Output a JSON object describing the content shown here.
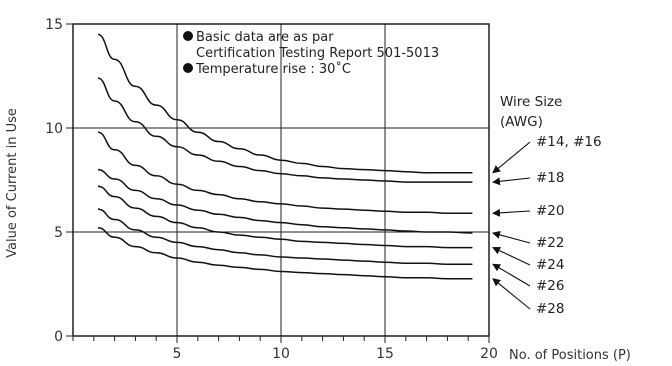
{
  "chart_data": {
    "type": "line",
    "ylabel": "Value of Current in Use",
    "xlabel": "No. of Positions (P)",
    "xlim": [
      0,
      20
    ],
    "ylim": [
      0,
      15
    ],
    "xticks": [
      5,
      10,
      15,
      20
    ],
    "yticks": [
      0,
      5,
      10,
      15
    ],
    "grid": true,
    "notes": [
      "Basic data are as par",
      "Certification Testing Report 501-5013",
      "Temperature rise : 30˚C"
    ],
    "legend_title": [
      "Wire Size",
      "(AWG)"
    ],
    "series": [
      {
        "name": "#14, #16",
        "x": [
          1.2,
          2,
          3,
          4,
          5,
          6,
          7,
          8,
          9,
          10,
          11,
          12,
          13,
          14,
          15,
          16,
          17,
          18,
          19.2
        ],
        "y": [
          14.5,
          13.3,
          12.0,
          11.1,
          10.4,
          9.8,
          9.35,
          9.0,
          8.7,
          8.45,
          8.3,
          8.15,
          8.05,
          8.0,
          7.95,
          7.9,
          7.85,
          7.85,
          7.85
        ]
      },
      {
        "name": "#18",
        "x": [
          1.2,
          2,
          3,
          4,
          5,
          6,
          7,
          8,
          9,
          10,
          11,
          12,
          13,
          14,
          15,
          16,
          17,
          18,
          19.2
        ],
        "y": [
          12.4,
          11.3,
          10.3,
          9.6,
          9.1,
          8.7,
          8.4,
          8.15,
          7.95,
          7.8,
          7.7,
          7.6,
          7.55,
          7.5,
          7.45,
          7.4,
          7.4,
          7.4,
          7.4
        ]
      },
      {
        "name": "#20",
        "x": [
          1.2,
          2,
          3,
          4,
          5,
          6,
          7,
          8,
          9,
          10,
          11,
          12,
          13,
          14,
          15,
          16,
          17,
          18,
          19.2
        ],
        "y": [
          9.8,
          8.95,
          8.2,
          7.7,
          7.3,
          7.0,
          6.8,
          6.6,
          6.45,
          6.35,
          6.25,
          6.15,
          6.1,
          6.05,
          6.0,
          5.95,
          5.95,
          5.9,
          5.9
        ]
      },
      {
        "name": "#22",
        "x": [
          1.2,
          2,
          3,
          4,
          5,
          6,
          7,
          8,
          9,
          10,
          11,
          12,
          13,
          14,
          15,
          16,
          17,
          18,
          19.2
        ],
        "y": [
          8.0,
          7.55,
          7.0,
          6.6,
          6.3,
          6.05,
          5.85,
          5.7,
          5.55,
          5.45,
          5.35,
          5.25,
          5.2,
          5.15,
          5.1,
          5.05,
          5.0,
          5.0,
          4.95
        ]
      },
      {
        "name": "#24",
        "x": [
          1.2,
          2,
          3,
          4,
          5,
          6,
          7,
          8,
          9,
          10,
          11,
          12,
          13,
          14,
          15,
          16,
          17,
          18,
          19.2
        ],
        "y": [
          7.2,
          6.7,
          6.15,
          5.75,
          5.45,
          5.2,
          5.0,
          4.85,
          4.75,
          4.65,
          4.55,
          4.5,
          4.45,
          4.4,
          4.35,
          4.3,
          4.3,
          4.25,
          4.25
        ]
      },
      {
        "name": "#26",
        "x": [
          1.2,
          2,
          3,
          4,
          5,
          6,
          7,
          8,
          9,
          10,
          11,
          12,
          13,
          14,
          15,
          16,
          17,
          18,
          19.2
        ],
        "y": [
          6.1,
          5.6,
          5.1,
          4.75,
          4.5,
          4.3,
          4.15,
          4.0,
          3.9,
          3.8,
          3.75,
          3.7,
          3.65,
          3.6,
          3.55,
          3.5,
          3.5,
          3.45,
          3.45
        ]
      },
      {
        "name": "#28",
        "x": [
          1.2,
          2,
          3,
          4,
          5,
          6,
          7,
          8,
          9,
          10,
          11,
          12,
          13,
          14,
          15,
          16,
          17,
          18,
          19.2
        ],
        "y": [
          5.2,
          4.75,
          4.3,
          4.0,
          3.75,
          3.55,
          3.4,
          3.3,
          3.2,
          3.1,
          3.05,
          3.0,
          2.95,
          2.9,
          2.85,
          2.8,
          2.8,
          2.75,
          2.75
        ]
      }
    ]
  }
}
